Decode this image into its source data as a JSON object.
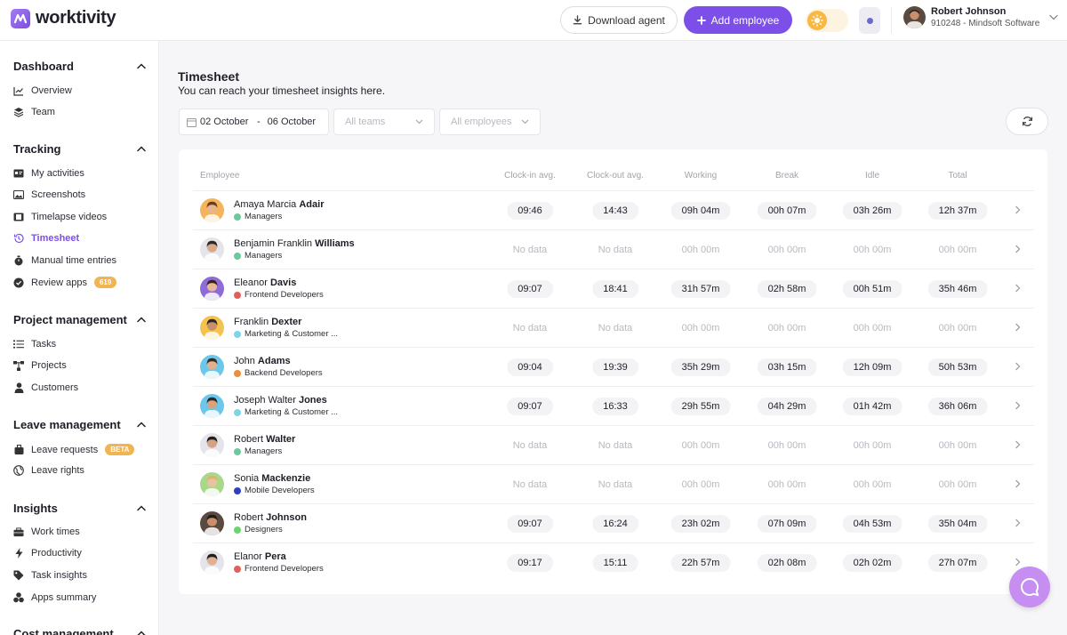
{
  "header": {
    "logo_text": "worktivity",
    "download_label": "Download agent",
    "add_label": "Add employee",
    "user_name": "Robert Johnson",
    "user_sub": "910248 - Mindsoft Software"
  },
  "sidebar": {
    "sections": [
      {
        "title": "Dashboard",
        "items": [
          {
            "label": "Overview",
            "icon": "chart-icon"
          },
          {
            "label": "Team",
            "icon": "layers-icon"
          }
        ]
      },
      {
        "title": "Tracking",
        "items": [
          {
            "label": "My activities",
            "icon": "id-card-icon"
          },
          {
            "label": "Screenshots",
            "icon": "image-icon"
          },
          {
            "label": "Timelapse videos",
            "icon": "film-icon"
          },
          {
            "label": "Timesheet",
            "icon": "history-icon"
          },
          {
            "label": "Manual time entries",
            "icon": "stopwatch-icon"
          },
          {
            "label": "Review apps",
            "icon": "check-circle-icon",
            "badge": "619"
          }
        ]
      },
      {
        "title": "Project management",
        "items": [
          {
            "label": "Tasks",
            "icon": "list-icon"
          },
          {
            "label": "Projects",
            "icon": "hierarchy-icon"
          },
          {
            "label": "Customers",
            "icon": "user-icon"
          }
        ]
      },
      {
        "title": "Leave management",
        "items": [
          {
            "label": "Leave requests",
            "icon": "suitcase-icon",
            "badge": "BETA"
          },
          {
            "label": "Leave rights",
            "icon": "globe-icon"
          }
        ]
      },
      {
        "title": "Insights",
        "items": [
          {
            "label": "Work times",
            "icon": "briefcase-icon"
          },
          {
            "label": "Productivity",
            "icon": "bolt-icon"
          },
          {
            "label": "Task insights",
            "icon": "tag-icon"
          },
          {
            "label": "Apps summary",
            "icon": "pie-icon"
          }
        ]
      },
      {
        "title": "Cost management",
        "items": []
      }
    ]
  },
  "main": {
    "title": "Timesheet",
    "subtitle": "You can reach your timesheet insights here.",
    "date_from": "02 October",
    "date_to": "06 October",
    "teams_placeholder": "All teams",
    "employees_placeholder": "All employees",
    "columns": [
      "Employee",
      "Clock-in avg.",
      "Clock-out avg.",
      "Working",
      "Break",
      "Idle",
      "Total"
    ],
    "rows": [
      {
        "first": "Amaya Marcia",
        "last": "Adair",
        "team": "Managers",
        "team_color": "#6cc99a",
        "avatar_bg": "#f4b45b",
        "skin": "#e8b48f",
        "hair": "#6b3a22",
        "cells": [
          "09:46",
          "14:43",
          "09h 04m",
          "00h 07m",
          "03h 26m",
          "12h 37m"
        ]
      },
      {
        "first": "Benjamin Franklin",
        "last": "Williams",
        "team": "Managers",
        "team_color": "#6cc99a",
        "avatar_bg": "#e4e4ea",
        "skin": "#d9a886",
        "hair": "#2a2a2a",
        "cells": [
          "No data",
          "No data",
          "00h 00m",
          "00h 00m",
          "00h 00m",
          "00h 00m"
        ]
      },
      {
        "first": "Eleanor",
        "last": "Davis",
        "team": "Frontend Developers",
        "team_color": "#e3605a",
        "avatar_bg": "#8e6cd8",
        "skin": "#e6b799",
        "hair": "#3a2418",
        "cells": [
          "09:07",
          "18:41",
          "31h 57m",
          "02h 58m",
          "00h 51m",
          "35h 46m"
        ]
      },
      {
        "first": "Franklin",
        "last": "Dexter",
        "team": "Marketing & Customer ...",
        "team_color": "#7fd3e8",
        "avatar_bg": "#f4c24f",
        "skin": "#c98f6a",
        "hair": "#2b2b2b",
        "cells": [
          "No data",
          "No data",
          "00h 00m",
          "00h 00m",
          "00h 00m",
          "00h 00m"
        ]
      },
      {
        "first": "John",
        "last": "Adams",
        "team": "Backend Developers",
        "team_color": "#ef8d3a",
        "avatar_bg": "#6cc7ea",
        "skin": "#e3b08c",
        "hair": "#3a2a1e",
        "cells": [
          "09:04",
          "19:39",
          "35h 29m",
          "03h 15m",
          "12h 09m",
          "50h 53m"
        ]
      },
      {
        "first": "Joseph Walter",
        "last": "Jones",
        "team": "Marketing & Customer ...",
        "team_color": "#7fd3e8",
        "avatar_bg": "#6cc7ea",
        "skin": "#d8a27c",
        "hair": "#2a2a2a",
        "cells": [
          "09:07",
          "16:33",
          "29h 55m",
          "04h 29m",
          "01h 42m",
          "36h 06m"
        ]
      },
      {
        "first": "Robert",
        "last": "Walter",
        "team": "Managers",
        "team_color": "#6cc99a",
        "avatar_bg": "#e4e4ea",
        "skin": "#d6a283",
        "hair": "#1f1f1f",
        "cells": [
          "No data",
          "No data",
          "00h 00m",
          "00h 00m",
          "00h 00m",
          "00h 00m"
        ]
      },
      {
        "first": "Sonia",
        "last": "Mackenzie",
        "team": "Mobile Developers",
        "team_color": "#2f3fbf",
        "avatar_bg": "#a9d88a",
        "skin": "#eac2a0",
        "hair": "#d9b56a",
        "cells": [
          "No data",
          "No data",
          "00h 00m",
          "00h 00m",
          "00h 00m",
          "00h 00m"
        ]
      },
      {
        "first": "Robert",
        "last": "Johnson",
        "team": "Designers",
        "team_color": "#6cd46c",
        "avatar_bg": "#5a4a40",
        "skin": "#c98f6a",
        "hair": "#1e1e1e",
        "cells": [
          "09:07",
          "16:24",
          "23h 02m",
          "07h 09m",
          "04h 53m",
          "35h 04m"
        ]
      },
      {
        "first": "Elanor",
        "last": "Pera",
        "team": "Frontend Developers",
        "team_color": "#e3605a",
        "avatar_bg": "#e4e4ea",
        "skin": "#e0b090",
        "hair": "#1e1e1e",
        "cells": [
          "09:17",
          "15:11",
          "22h 57m",
          "02h 08m",
          "02h 02m",
          "27h 07m"
        ]
      }
    ]
  }
}
